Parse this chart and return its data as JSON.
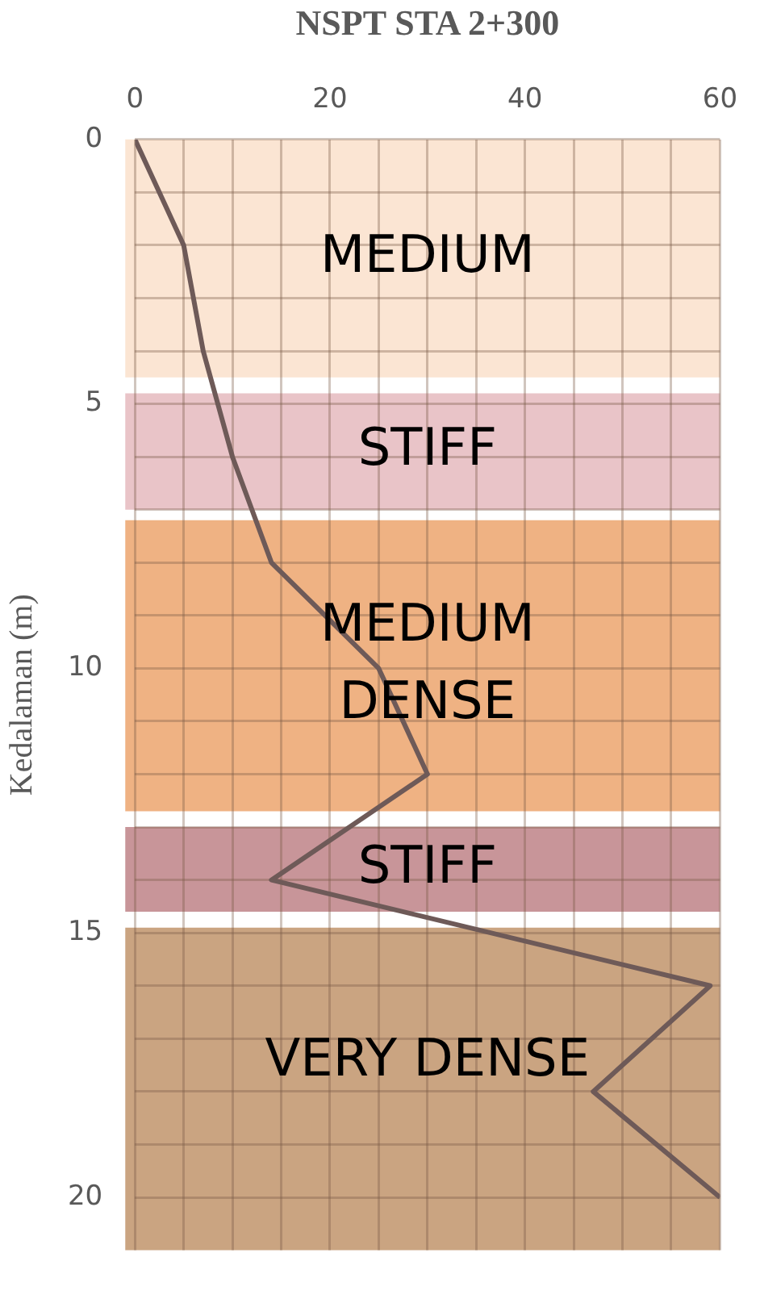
{
  "chart_data": {
    "type": "line",
    "title": "NSPT STA 2+300",
    "ylabel": "Kedalaman (m)",
    "series": [
      {
        "color": "#6e5a58",
        "x": [
          0,
          5,
          7,
          10,
          14,
          25,
          30,
          14,
          59,
          47,
          60
        ],
        "values": [
          0,
          2,
          4,
          6,
          8,
          10,
          12,
          14,
          16,
          18,
          20
        ]
      }
    ],
    "xlim": [
      0,
      60
    ],
    "xticks": [
      0,
      {
        "value": 5,
        "label": null
      },
      {
        "value": 10,
        "label": null
      },
      {
        "value": 15,
        "label": null
      },
      20,
      {
        "value": 25,
        "label": null
      },
      {
        "value": 30,
        "label": null
      },
      {
        "value": 35,
        "label": null
      },
      40,
      {
        "value": 45,
        "label": null
      },
      {
        "value": 50,
        "label": null
      },
      {
        "value": 55,
        "label": null
      },
      60
    ],
    "ylim": [
      21,
      0
    ],
    "yticks": [
      0,
      {
        "value": 1,
        "label": null
      },
      {
        "value": 2,
        "label": null
      },
      {
        "value": 3,
        "label": null
      },
      {
        "value": 4,
        "label": null
      },
      5,
      {
        "value": 6,
        "label": null
      },
      {
        "value": 7,
        "label": null
      },
      {
        "value": 8,
        "label": null
      },
      {
        "value": 9,
        "label": null
      },
      10,
      {
        "value": 11,
        "label": null
      },
      {
        "value": 12,
        "label": null
      },
      {
        "value": 13,
        "label": null
      },
      {
        "value": 14,
        "label": null
      },
      15,
      {
        "value": 16,
        "label": null
      },
      {
        "value": 17,
        "label": null
      },
      {
        "value": 18,
        "label": null
      },
      {
        "value": 19,
        "label": null
      },
      20
    ],
    "bands": [
      {
        "axis": "y",
        "from": 0,
        "to": 4.5,
        "label": "MEDIUM",
        "color": "#fbe5d3"
      },
      {
        "axis": "y",
        "from": 4.8,
        "to": 7,
        "label": "STIFF",
        "color": "#e9c4c8"
      },
      {
        "axis": "y",
        "from": 7.2,
        "to": 12.7,
        "label": "MEDIUM\nDENSE",
        "color": "#efb283"
      },
      {
        "axis": "y",
        "from": 13,
        "to": 14.6,
        "label": "STIFF",
        "color": "#c89599"
      },
      {
        "axis": "y",
        "from": 14.9,
        "to": 21,
        "label": "VERY DENSE",
        "color": "#caa481"
      }
    ],
    "grid": true,
    "legend": false,
    "marker": "none",
    "line_style": "solid"
  }
}
